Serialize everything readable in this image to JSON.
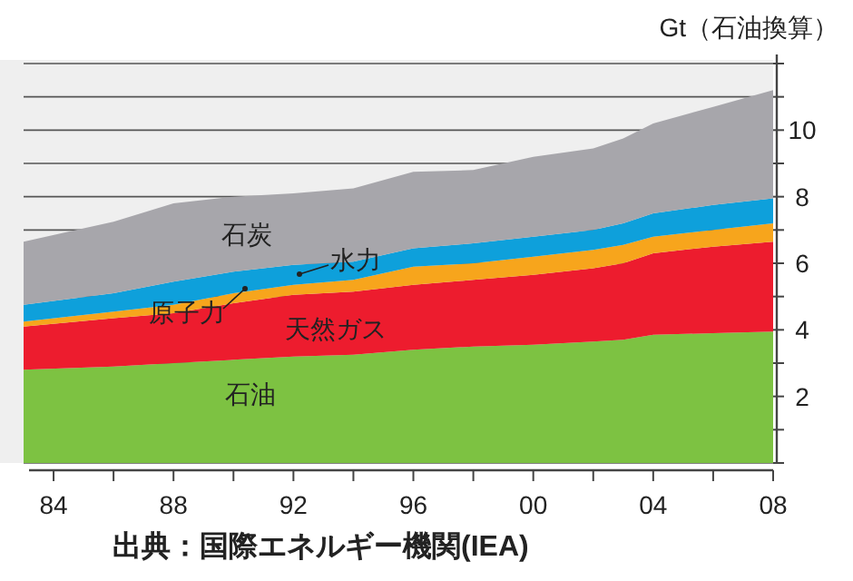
{
  "chart_data": {
    "type": "area",
    "stacked": true,
    "ylabel": "Gt（石油換算）",
    "annotations": [
      "出典：国際エネルギー機関(IEA)"
    ],
    "x": [
      1983,
      1986,
      1988,
      1990,
      1992,
      1994,
      1996,
      1998,
      2000,
      2002,
      2003,
      2004,
      2006,
      2008
    ],
    "series": [
      {
        "name": "石油",
        "color": "#7dc242",
        "values": [
          2.8,
          2.9,
          3.0,
          3.1,
          3.2,
          3.25,
          3.4,
          3.5,
          3.55,
          3.65,
          3.7,
          3.85,
          3.9,
          3.95
        ]
      },
      {
        "name": "天然ガス",
        "color": "#ed1c2e",
        "values": [
          1.3,
          1.45,
          1.5,
          1.7,
          1.85,
          1.9,
          1.95,
          2.0,
          2.1,
          2.2,
          2.3,
          2.45,
          2.6,
          2.7
        ]
      },
      {
        "name": "原子力",
        "color": "#f7a51c",
        "values": [
          0.15,
          0.2,
          0.25,
          0.3,
          0.3,
          0.35,
          0.55,
          0.5,
          0.55,
          0.55,
          0.55,
          0.5,
          0.5,
          0.55
        ]
      },
      {
        "name": "水力",
        "color": "#0ea0db",
        "values": [
          0.5,
          0.55,
          0.7,
          0.65,
          0.6,
          0.55,
          0.55,
          0.6,
          0.6,
          0.6,
          0.65,
          0.7,
          0.75,
          0.75
        ]
      },
      {
        "name": "石炭",
        "color": "#a7a6ab",
        "values": [
          1.9,
          2.15,
          2.35,
          2.25,
          2.15,
          2.2,
          2.3,
          2.2,
          2.4,
          2.45,
          2.55,
          2.7,
          2.95,
          3.25
        ]
      }
    ],
    "xlim": [
      1983,
      2008
    ],
    "xticks": [
      {
        "value": 1984,
        "label": "84"
      },
      {
        "value": 1986,
        "label": null
      },
      {
        "value": 1988,
        "label": "88"
      },
      {
        "value": 1990,
        "label": null
      },
      {
        "value": 1992,
        "label": "92"
      },
      {
        "value": 1994,
        "label": null
      },
      {
        "value": 1996,
        "label": "96"
      },
      {
        "value": 1998,
        "label": null
      },
      {
        "value": 2000,
        "label": "00"
      },
      {
        "value": 2002,
        "label": null
      },
      {
        "value": 2004,
        "label": "04"
      },
      {
        "value": 2006,
        "label": null
      },
      {
        "value": 2008,
        "label": "08"
      }
    ],
    "ylim": [
      0,
      12
    ],
    "yticks": [
      {
        "value": 0,
        "label": null
      },
      {
        "value": 1,
        "label": null
      },
      2,
      {
        "value": 3,
        "label": null
      },
      4,
      {
        "value": 5,
        "label": null
      },
      6,
      {
        "value": 7,
        "label": null
      },
      8,
      {
        "value": 9,
        "label": null
      },
      10,
      {
        "value": 11,
        "label": null
      },
      {
        "value": 12,
        "label": null
      }
    ],
    "grid": "y",
    "legend": false
  }
}
